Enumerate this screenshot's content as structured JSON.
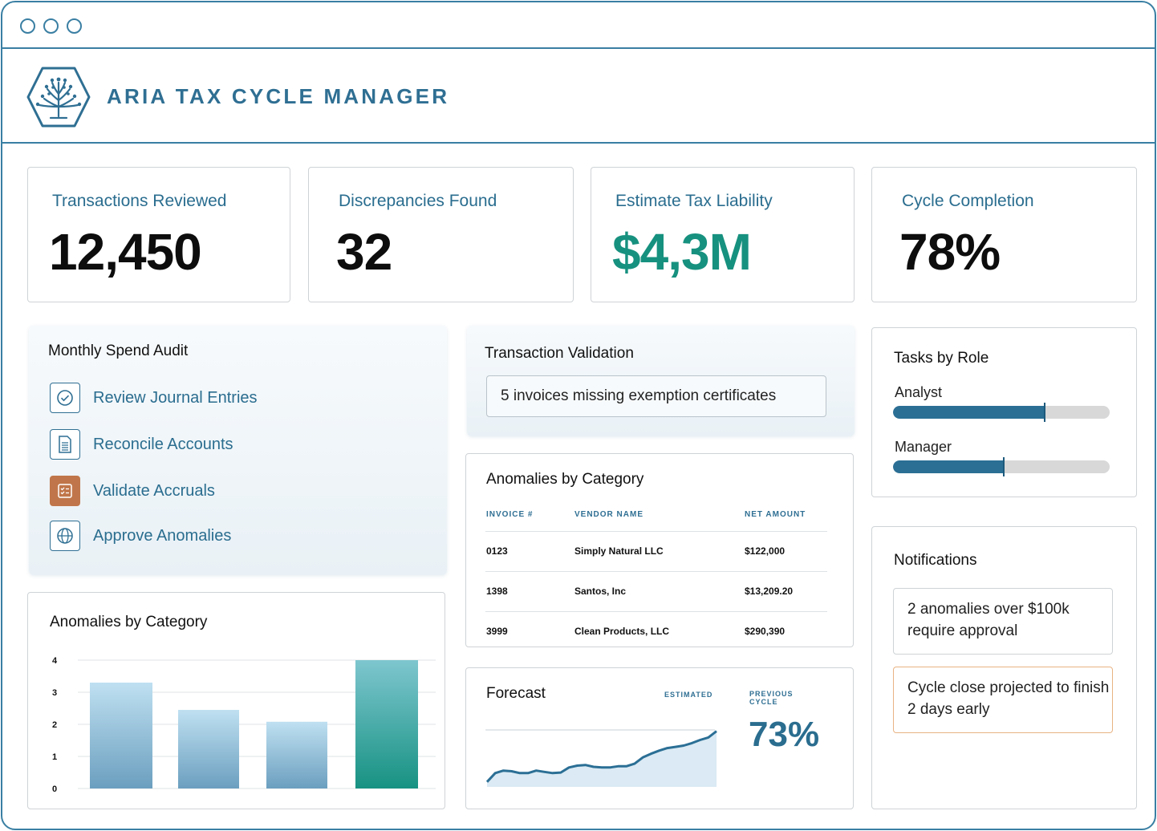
{
  "app": {
    "title": "ARIA TAX CYCLE MANAGER"
  },
  "kpis": [
    {
      "label": "Transactions Reviewed",
      "value": "12,450"
    },
    {
      "label": "Discrepancies Found",
      "value": "32"
    },
    {
      "label": "Estimate Tax Liability",
      "value": "$4,3M"
    },
    {
      "label": "Cycle Completion",
      "value": "78%"
    }
  ],
  "spend_audit": {
    "title": "Monthly Spend Audit",
    "items": [
      {
        "label": "Review Journal Entries",
        "icon": "check-circle-icon"
      },
      {
        "label": "Reconcile Accounts",
        "icon": "document-icon"
      },
      {
        "label": "Validate Accruals",
        "icon": "checklist-icon"
      },
      {
        "label": "Approve Anomalies",
        "icon": "globe-icon"
      }
    ]
  },
  "validation": {
    "title": "Transaction Validation",
    "message": "5 invoices missing exemption certificates"
  },
  "anomalies_table": {
    "title": "Anomalies by Category",
    "columns": [
      "INVOICE #",
      "VENDOR NAME",
      "NET AMOUNT"
    ],
    "rows": [
      [
        "0123",
        "Simply Natural LLC",
        "$122,000"
      ],
      [
        "1398",
        "Santos, Inc",
        "$13,209.20"
      ],
      [
        "3999",
        "Clean Products, LLC",
        "$290,390"
      ]
    ]
  },
  "tasks_by_role": {
    "title": "Tasks by Role",
    "roles": [
      {
        "label": "Analyst",
        "progress": 0.7
      },
      {
        "label": "Manager",
        "progress": 0.51
      }
    ]
  },
  "notifications": {
    "title": "Notifications",
    "items": [
      {
        "text": "2 anomalies over $100k require approval",
        "accent": "#cfd3d6"
      },
      {
        "text": "Cycle close projected to finish 2 days early",
        "accent": "#e8b383"
      }
    ]
  },
  "anomalies_chart": {
    "title": "Anomalies by Category"
  },
  "forecast": {
    "title": "Forecast",
    "estimated_label": "ESTIMATED",
    "previous_label_1": "PREVIOUS",
    "previous_label_2": "CYCLE",
    "value": "73%"
  },
  "chart_data": [
    {
      "type": "bar",
      "title": "Anomalies by Category",
      "categories": [
        "",
        "",
        "",
        ""
      ],
      "values": [
        3.3,
        2.45,
        2.08,
        4.0
      ],
      "yticks": [
        "0",
        "1",
        "2",
        "3",
        "4"
      ],
      "ylim": [
        0,
        4
      ],
      "grid": true,
      "colors": [
        "#8fbad4",
        "#8fbad4",
        "#8fbad4",
        "#2a9e8e"
      ]
    },
    {
      "type": "area",
      "title": "Forecast",
      "x": [
        0,
        1,
        2,
        3,
        4,
        5,
        6,
        7,
        8,
        9,
        10,
        11,
        12,
        13,
        14,
        15,
        16,
        17,
        18,
        19,
        20,
        21,
        22,
        23,
        24,
        25,
        26,
        27,
        28
      ],
      "values": [
        0.8,
        2.2,
        2.6,
        2.5,
        2.2,
        2.2,
        2.6,
        2.4,
        2.2,
        2.3,
        3.1,
        3.4,
        3.5,
        3.2,
        3.1,
        3.1,
        3.3,
        3.3,
        3.7,
        4.7,
        5.3,
        5.8,
        6.2,
        6.4,
        6.6,
        7.0,
        7.5,
        7.9,
        8.9
      ],
      "ylim": [
        0,
        10
      ],
      "colors": [
        "#2b6f95",
        "#dbeaf4"
      ]
    }
  ]
}
